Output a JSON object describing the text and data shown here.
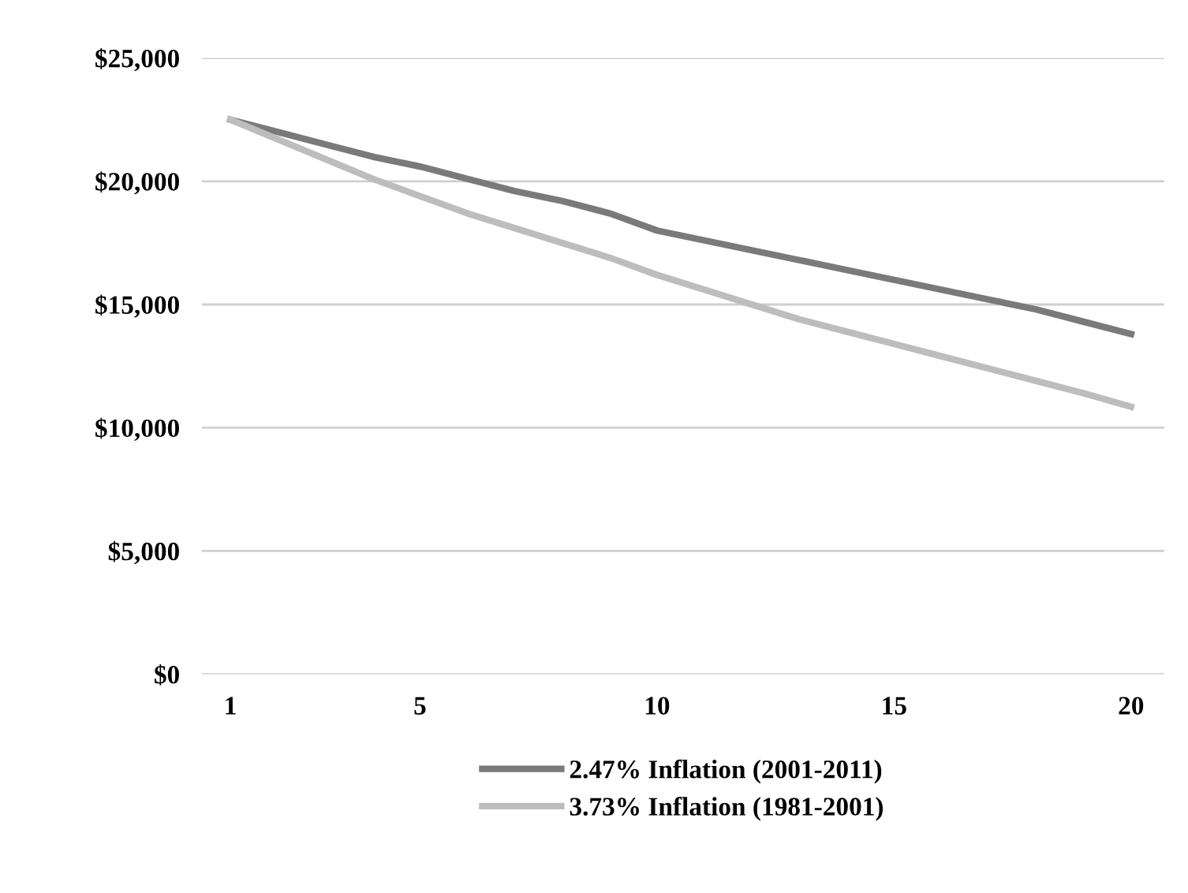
{
  "chart_data": {
    "type": "line",
    "x": [
      1,
      2,
      3,
      4,
      5,
      6,
      7,
      8,
      9,
      10,
      11,
      12,
      13,
      14,
      15,
      16,
      17,
      18,
      19,
      20
    ],
    "series": [
      {
        "name": "2.47% Inflation (2001-2011)",
        "color": "#7a7a7a",
        "values": [
          22500,
          22000,
          21500,
          21000,
          20600,
          20100,
          19600,
          19200,
          18700,
          18000,
          17600,
          17200,
          16800,
          16400,
          16000,
          15600,
          15200,
          14800,
          14300,
          13800
        ]
      },
      {
        "name": "3.73% Inflation (1981-2001)",
        "color": "#bdbdbd",
        "values": [
          22500,
          21700,
          20900,
          20100,
          19400,
          18700,
          18100,
          17500,
          16900,
          16200,
          15600,
          15000,
          14400,
          13900,
          13400,
          12900,
          12400,
          11900,
          11400,
          10850
        ]
      }
    ],
    "xlim": [
      0.4,
      20.7
    ],
    "xticks": [
      1,
      5,
      10,
      15,
      20
    ],
    "ylim": [
      0,
      25000
    ],
    "yticks": [
      {
        "value": 0,
        "label": "$0"
      },
      {
        "value": 5000,
        "label": "$5,000"
      },
      {
        "value": 10000,
        "label": "$10,000"
      },
      {
        "value": 15000,
        "label": "$15,000"
      },
      {
        "value": 20000,
        "label": "$20,000"
      },
      {
        "value": 25000,
        "label": "$25,000"
      }
    ],
    "grid": "y",
    "legend": "bottom",
    "marker": "none",
    "line_style": "solid"
  }
}
